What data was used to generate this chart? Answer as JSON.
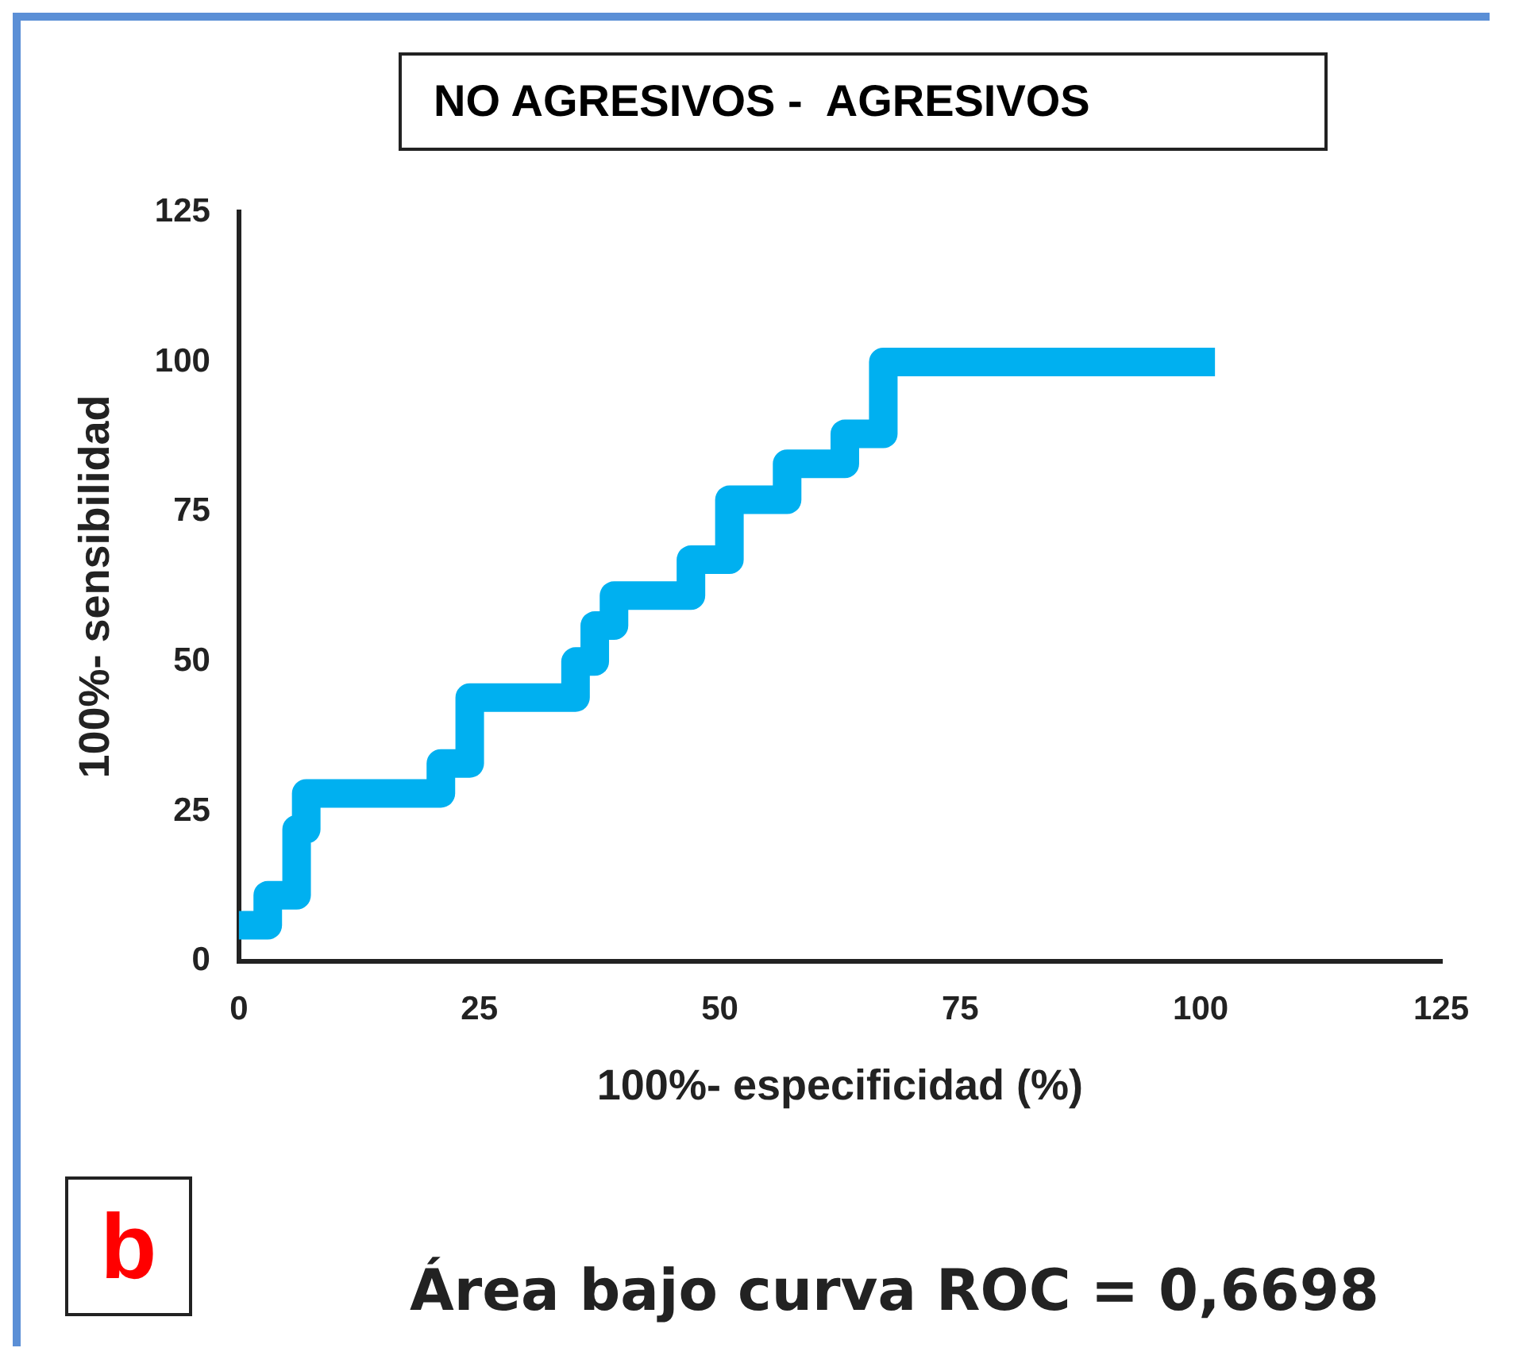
{
  "chart_data": {
    "type": "line",
    "title": "NO AGRESIVOS -  AGRESIVOS",
    "xlabel": "100%- especificidad (%)",
    "ylabel": "100%- sensibilidad",
    "x": [
      0,
      3,
      3,
      6,
      6,
      7,
      7,
      21,
      21,
      24,
      24,
      35,
      35,
      37,
      37,
      39,
      39,
      47,
      47,
      51,
      51,
      57,
      57,
      63,
      63,
      67,
      67,
      100
    ],
    "series": [
      {
        "color": "#00b0f0",
        "values": [
          6,
          6,
          11,
          11,
          22,
          22,
          28,
          28,
          33,
          33,
          44,
          44,
          50,
          50,
          56,
          56,
          61,
          61,
          67,
          67,
          77,
          77,
          83,
          83,
          88,
          88,
          100,
          100
        ]
      }
    ],
    "xlim": [
      0,
      125
    ],
    "xticks": [
      0,
      25,
      50,
      75,
      100,
      125
    ],
    "ylim": [
      0,
      125
    ],
    "yticks": [
      0,
      25,
      50,
      75,
      100,
      125
    ],
    "grid": false,
    "legend": false,
    "marker": "none",
    "line_style": "solid",
    "annotations": [
      "b",
      "Área bajo curva ROC = 0,6698"
    ]
  }
}
